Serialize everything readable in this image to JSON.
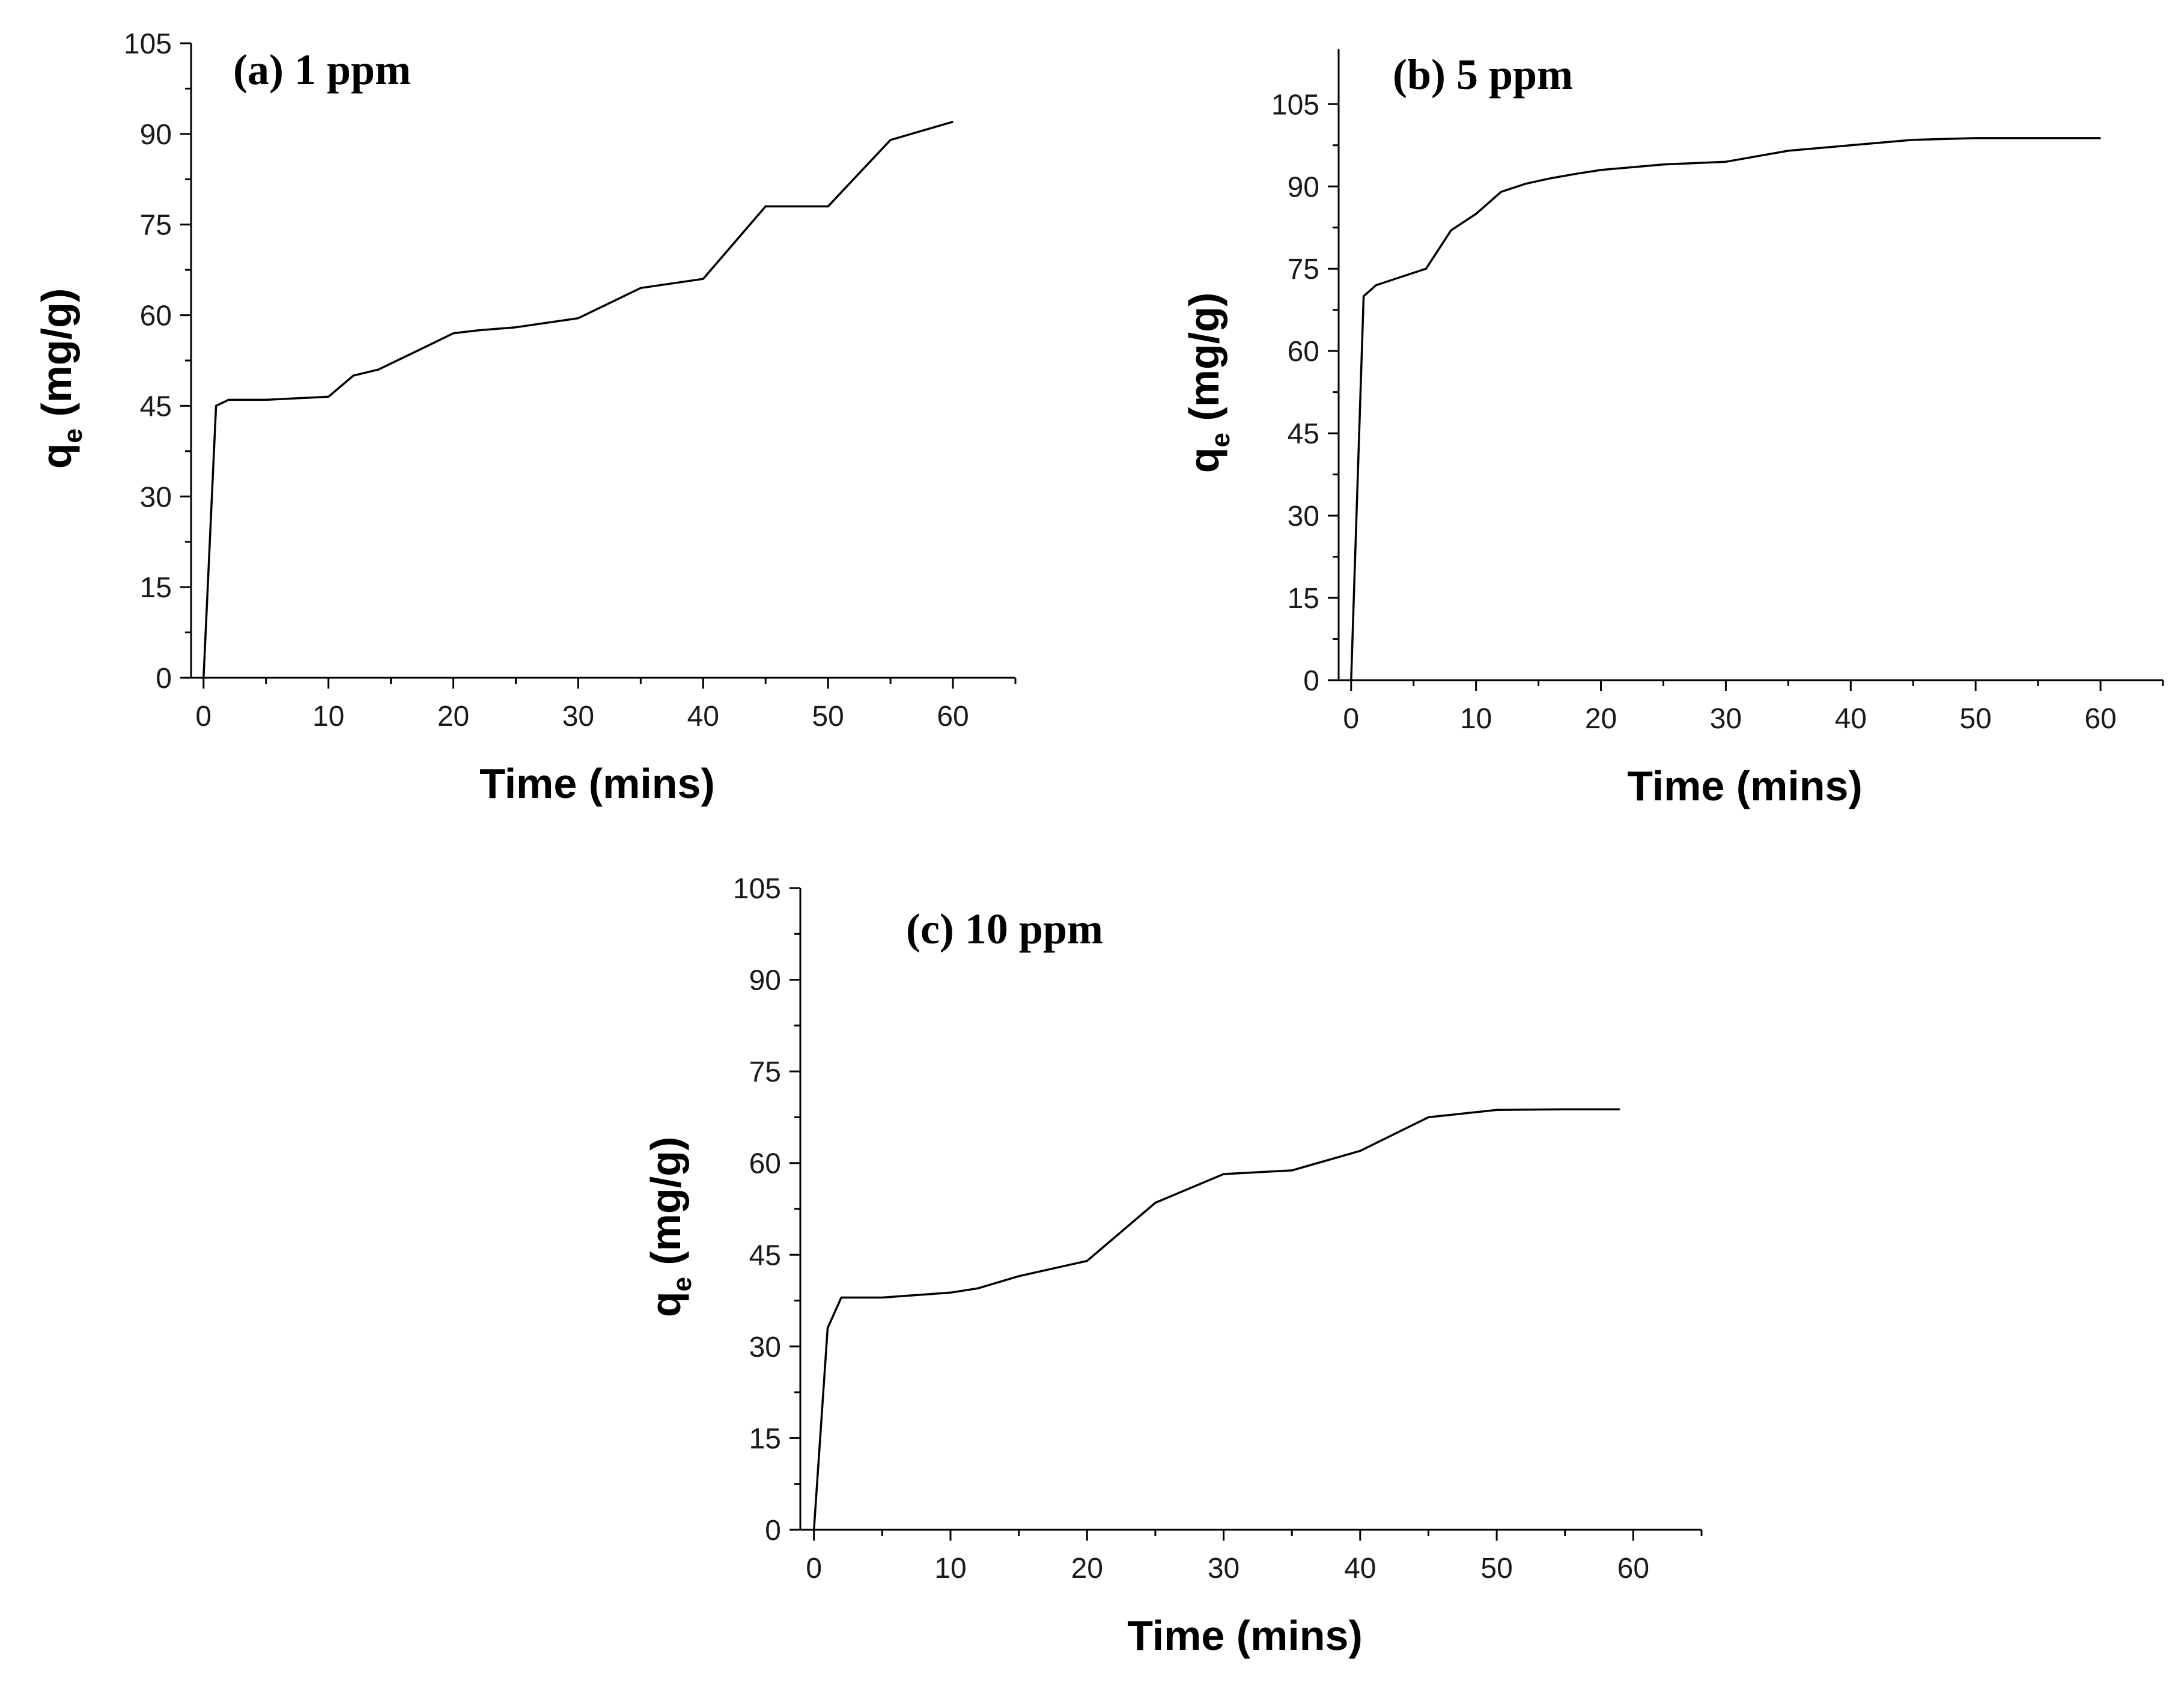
{
  "chart_data": [
    {
      "type": "line",
      "title": "(a) 1 ppm",
      "xlabel": "Time (mins)",
      "ylabel_main": "q",
      "ylabel_sub": "e",
      "ylabel_unit": " (mg/g)",
      "xlim": [
        -1,
        65
      ],
      "ylim": [
        0,
        105
      ],
      "xticks": [
        0,
        10,
        20,
        30,
        40,
        50,
        60
      ],
      "yticks": [
        0,
        15,
        30,
        45,
        60,
        75,
        90,
        105
      ],
      "x": [
        0,
        1,
        2,
        5,
        10,
        12,
        14,
        16,
        18,
        20,
        22,
        25,
        30,
        35,
        40,
        45,
        50,
        55,
        60
      ],
      "y": [
        0,
        45,
        46,
        46,
        46.5,
        50,
        51,
        53,
        55,
        57,
        57.5,
        58,
        59.5,
        64.5,
        66,
        78,
        78,
        89,
        92
      ]
    },
    {
      "type": "line",
      "title": "(b) 5 ppm",
      "xlabel": "Time (mins)",
      "ylabel_main": "q",
      "ylabel_sub": "e",
      "ylabel_unit": " (mg/g)",
      "xlim": [
        -1,
        65
      ],
      "ylim": [
        0,
        115
      ],
      "xticks": [
        0,
        10,
        20,
        30,
        40,
        50,
        60
      ],
      "yticks": [
        0,
        15,
        30,
        45,
        60,
        75,
        90,
        105
      ],
      "x": [
        0,
        1,
        2,
        4,
        6,
        8,
        10,
        12,
        14,
        16,
        18,
        20,
        25,
        30,
        35,
        40,
        45,
        50,
        55,
        60
      ],
      "y": [
        0,
        70,
        72,
        73.5,
        75,
        82,
        85,
        89,
        90.5,
        91.5,
        92.3,
        93,
        94,
        94.5,
        96.5,
        97.5,
        98.5,
        98.8,
        98.8,
        98.8
      ]
    },
    {
      "type": "line",
      "title": "(c) 10 ppm",
      "xlabel": "Time (mins)",
      "ylabel_main": "q",
      "ylabel_sub": "e",
      "ylabel_unit": " (mg/g)",
      "xlim": [
        -1,
        65
      ],
      "ylim": [
        0,
        105
      ],
      "xticks": [
        0,
        10,
        20,
        30,
        40,
        50,
        60
      ],
      "yticks": [
        0,
        15,
        30,
        45,
        60,
        75,
        90,
        105
      ],
      "x": [
        0,
        1,
        2,
        5,
        10,
        12,
        15,
        20,
        25,
        30,
        35,
        40,
        45,
        50,
        55,
        59
      ],
      "y": [
        0,
        33,
        38,
        38,
        38.8,
        39.5,
        41.5,
        44,
        53.5,
        58.2,
        58.8,
        62,
        67.5,
        68.7,
        68.8,
        68.8
      ]
    }
  ]
}
